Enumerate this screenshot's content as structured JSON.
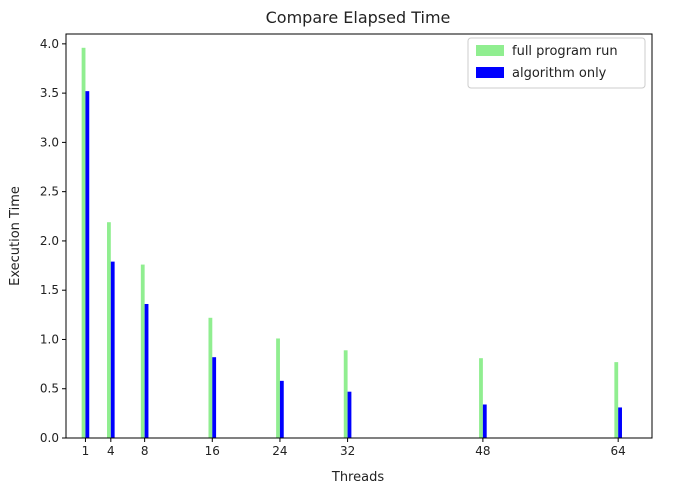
{
  "chart_data": {
    "type": "bar",
    "title": "Compare Elapsed Time",
    "xlabel": "Threads",
    "ylabel": "Execution Time",
    "x": [
      1,
      4,
      8,
      16,
      24,
      32,
      48,
      64
    ],
    "x_tick_labels": [
      "1",
      "4",
      "8",
      "16",
      "24",
      "32",
      "48",
      "64"
    ],
    "xlim": [
      -1.3,
      68
    ],
    "ylim": [
      0,
      4.1
    ],
    "y_ticks": [
      "0.0",
      "0.5",
      "1.0",
      "1.5",
      "2.0",
      "2.5",
      "3.0",
      "3.5",
      "4.0"
    ],
    "grid": false,
    "legend_position": "upper right",
    "series": [
      {
        "name": "full program run",
        "color": "#90ee90",
        "values": [
          3.96,
          2.19,
          1.76,
          1.22,
          1.01,
          0.89,
          0.81,
          0.77
        ]
      },
      {
        "name": "algorithm only",
        "color": "#0000ff",
        "values": [
          3.52,
          1.79,
          1.36,
          0.82,
          0.58,
          0.47,
          0.34,
          0.31
        ]
      }
    ]
  }
}
